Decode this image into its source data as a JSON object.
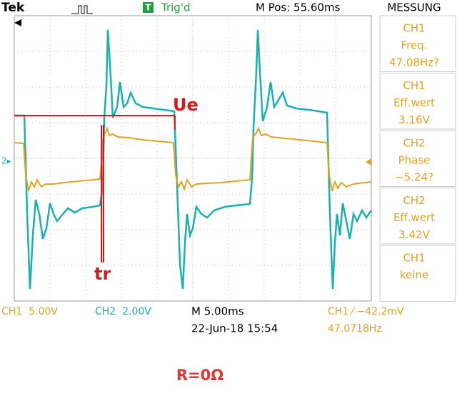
{
  "header": {
    "brand": "Tek",
    "trigger_icon": "T",
    "trigger_state": "Trig'd",
    "position": "M Pos: 55.60ms",
    "menu": "MESSUNG"
  },
  "measurements": [
    {
      "channel": "CH1",
      "label": "Freq.",
      "value": "47.08Hz?"
    },
    {
      "channel": "CH1",
      "label": "Eff.wert",
      "value": "3.16V"
    },
    {
      "channel": "CH2",
      "label": "Phase",
      "value": "−5.24?"
    },
    {
      "channel": "CH2",
      "label": "Eff.wert",
      "value": "3.42V"
    },
    {
      "channel": "CH1",
      "label": "keine"
    }
  ],
  "footer": {
    "ch1_scale": "CH1  5.00V",
    "ch2_scale": "CH2  2.00V",
    "timebase": "M 5.00ms",
    "datetime": "22-Jun-18 15:54",
    "trigger": "CH1 ⁄ −42.2mV",
    "frequency": "47.0718Hz"
  },
  "markers": {
    "ch2_ground": "2▸"
  },
  "annotations": {
    "ue": "Ue",
    "tr": "tr"
  },
  "caption": "R=0Ω"
}
